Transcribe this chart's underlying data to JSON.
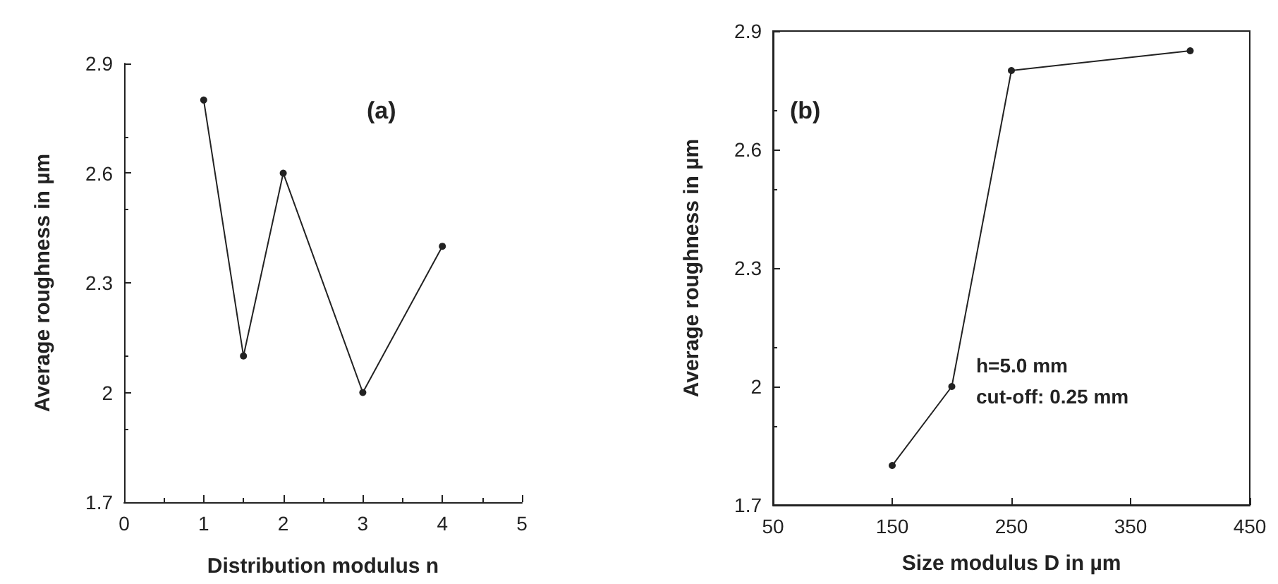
{
  "chart_data": [
    {
      "type": "line",
      "xlabel": "Distribution modulus n",
      "ylabel": "Average roughness in µm",
      "x": [
        1,
        1.5,
        2,
        3,
        4
      ],
      "series": [
        {
          "color": "#222222",
          "values": [
            2.8,
            2.1,
            2.6,
            2.0,
            2.4
          ]
        }
      ],
      "xlim": [
        0,
        5
      ],
      "xticks": [
        0,
        1,
        2,
        3,
        4,
        5
      ],
      "ylim": [
        1.7,
        2.9
      ],
      "yticks": [
        1.7,
        2,
        2.3,
        2.6,
        2.9
      ],
      "marker": "circle",
      "line_style": "solid",
      "grid": false,
      "annotations": [
        "(a)"
      ]
    },
    {
      "type": "line",
      "xlabel": "Size modulus D in µm",
      "ylabel": "Average roughness in µm",
      "x": [
        150,
        200,
        250,
        400
      ],
      "series": [
        {
          "color": "#222222",
          "values": [
            1.8,
            2.0,
            2.8,
            2.85
          ]
        }
      ],
      "xlim": [
        50,
        450
      ],
      "xticks": [
        50,
        150,
        250,
        350,
        450
      ],
      "ylim": [
        1.7,
        2.9
      ],
      "yticks": [
        1.7,
        2,
        2.3,
        2.6,
        2.9
      ],
      "marker": "circle",
      "line_style": "solid",
      "grid": false,
      "annotations": [
        "(b)",
        "h=5.0 mm",
        "cut-off: 0.25 mm"
      ]
    }
  ]
}
